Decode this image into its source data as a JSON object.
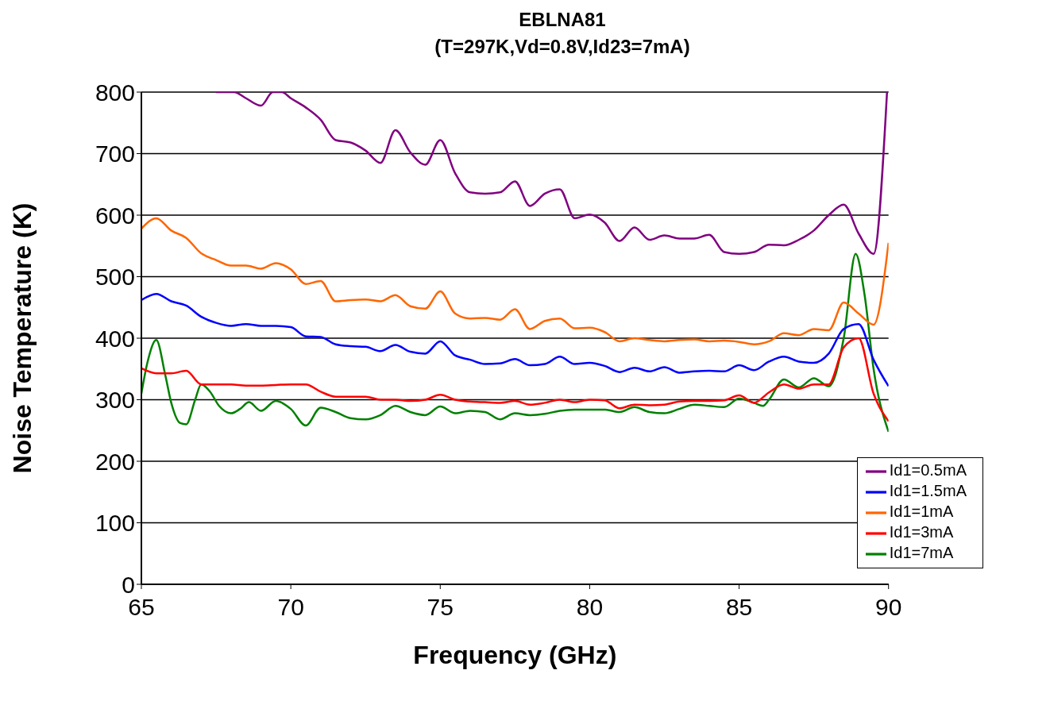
{
  "chart_data": {
    "type": "line",
    "title": "EBLNA81",
    "subtitle": "(T=297K,Vd=0.8V,Id23=7mA)",
    "xlabel": "Frequency (GHz)",
    "ylabel": "Noise Temperature (K)",
    "xlim": [
      65,
      90
    ],
    "xticks": [
      65,
      70,
      75,
      80,
      85,
      90
    ],
    "ylim": [
      0,
      800
    ],
    "yticks": [
      0,
      100,
      200,
      300,
      400,
      500,
      600,
      700,
      800
    ],
    "grid": "y",
    "legend": "bottom right",
    "marker": "none",
    "line_style": "solid",
    "series": [
      {
        "name": "Id1=7mA",
        "color": "#008000",
        "x": [
          65,
          65.2,
          65.5,
          65.8,
          66,
          66.3,
          66.5,
          66.8,
          67,
          67.3,
          67.6,
          68,
          68.3,
          68.6,
          69,
          69.5,
          70,
          70.5,
          71,
          71.5,
          72,
          72.5,
          73,
          73.5,
          74,
          74.5,
          75,
          75.5,
          76,
          76.5,
          77,
          77.5,
          78,
          78.5,
          79,
          79.5,
          80,
          80.5,
          81,
          81.5,
          82,
          82.5,
          83,
          83.5,
          84,
          84.5,
          85,
          85.5,
          85.8,
          86,
          86.5,
          87,
          87.5,
          88,
          88.5,
          88.9,
          89.2,
          89.5,
          90
        ],
        "values": [
          310,
          360,
          397,
          340,
          295,
          262,
          260,
          300,
          325,
          313,
          290,
          278,
          285,
          296,
          282,
          298,
          285,
          258,
          287,
          280,
          270,
          268,
          275,
          290,
          280,
          275,
          289,
          278,
          282,
          280,
          268,
          278,
          275,
          277,
          282,
          284,
          284,
          284,
          280,
          288,
          280,
          278,
          285,
          292,
          290,
          288,
          302,
          295,
          290,
          300,
          333,
          320,
          335,
          322,
          400,
          537,
          470,
          350,
          248
        ]
      },
      {
        "name": "Id1=3mA",
        "color": "#ff0000",
        "x": [
          65,
          65.5,
          66,
          66.5,
          67,
          67.5,
          68,
          68.5,
          69,
          69.5,
          70,
          70.5,
          71,
          71.5,
          72,
          72.5,
          73,
          73.5,
          74,
          74.5,
          75,
          75.5,
          76,
          76.5,
          77,
          77.5,
          78,
          78.5,
          79,
          79.5,
          80,
          80.5,
          81,
          81.5,
          82,
          82.5,
          83,
          83.5,
          84,
          84.5,
          85,
          85.5,
          86,
          86.5,
          87,
          87.5,
          88,
          88.5,
          89,
          89.5,
          90
        ],
        "values": [
          351,
          343,
          343,
          347,
          325,
          325,
          325,
          323,
          323,
          324,
          325,
          325,
          313,
          305,
          305,
          305,
          300,
          300,
          298,
          300,
          308,
          300,
          297,
          296,
          295,
          298,
          292,
          295,
          300,
          296,
          300,
          299,
          286,
          292,
          291,
          292,
          297,
          298,
          298,
          299,
          307,
          295,
          312,
          325,
          318,
          325,
          325,
          385,
          400,
          310,
          265
        ]
      },
      {
        "name": "Id1=1.5mA",
        "color": "#0000ff",
        "x": [
          65,
          65.5,
          66,
          66.5,
          67,
          67.5,
          68,
          68.5,
          69,
          69.5,
          70,
          70.5,
          71,
          71.5,
          72,
          72.5,
          73,
          73.5,
          74,
          74.5,
          75,
          75.5,
          76,
          76.5,
          77,
          77.5,
          78,
          78.5,
          79,
          79.5,
          80,
          80.5,
          81,
          81.5,
          82,
          82.5,
          83,
          83.5,
          84,
          84.5,
          85,
          85.5,
          86,
          86.5,
          87,
          87.5,
          88,
          88.5,
          89,
          89.5,
          90
        ],
        "values": [
          462,
          472,
          460,
          453,
          435,
          425,
          420,
          423,
          420,
          420,
          418,
          403,
          402,
          390,
          387,
          386,
          379,
          389,
          378,
          375,
          395,
          372,
          365,
          358,
          359,
          366,
          356,
          358,
          370,
          358,
          360,
          355,
          345,
          352,
          346,
          353,
          344,
          346,
          347,
          346,
          356,
          348,
          362,
          370,
          362,
          360,
          375,
          415,
          423,
          365,
          322
        ]
      },
      {
        "name": "Id1=1mA",
        "color": "#ff6600",
        "x": [
          65,
          65.5,
          66,
          66.5,
          67,
          67.5,
          68,
          68.5,
          69,
          69.5,
          70,
          70.5,
          71,
          71.5,
          72,
          72.5,
          73,
          73.5,
          74,
          74.5,
          75,
          75.5,
          76,
          76.5,
          77,
          77.5,
          78,
          78.5,
          79,
          79.5,
          80,
          80.5,
          81,
          81.5,
          82,
          82.5,
          83,
          83.5,
          84,
          84.5,
          85,
          85.5,
          86,
          86.5,
          87,
          87.5,
          88,
          88.5,
          89,
          89.5,
          90
        ],
        "values": [
          578,
          595,
          575,
          563,
          538,
          527,
          518,
          518,
          513,
          522,
          512,
          488,
          493,
          460,
          462,
          463,
          460,
          470,
          452,
          448,
          476,
          440,
          432,
          433,
          430,
          447,
          415,
          428,
          432,
          416,
          417,
          410,
          395,
          400,
          397,
          395,
          397,
          398,
          395,
          396,
          394,
          390,
          395,
          408,
          405,
          415,
          413,
          458,
          440,
          422,
          555
        ]
      },
      {
        "name": "Id1=0.5mA",
        "color": "#800080",
        "x": [
          67.5,
          68.1,
          68.5,
          69,
          69.4,
          69.7,
          70,
          70.5,
          71,
          71.5,
          72,
          72.5,
          73,
          73.5,
          74,
          74.5,
          75,
          75.5,
          76,
          76.5,
          77,
          77.5,
          78,
          78.5,
          79,
          79.5,
          80,
          80.5,
          81,
          81.5,
          82,
          82.5,
          83,
          83.5,
          84,
          84.5,
          85,
          85.5,
          86,
          86.5,
          87,
          87.5,
          88,
          88.5,
          89,
          89.5,
          89.95
        ],
        "values": [
          800,
          800,
          790,
          778,
          800,
          800,
          790,
          775,
          755,
          722,
          718,
          705,
          685,
          738,
          702,
          682,
          722,
          668,
          637,
          635,
          637,
          655,
          615,
          635,
          642,
          595,
          601,
          588,
          558,
          580,
          560,
          567,
          562,
          562,
          568,
          540,
          537,
          540,
          552,
          551,
          560,
          575,
          600,
          617,
          570,
          537,
          800
        ]
      }
    ]
  }
}
